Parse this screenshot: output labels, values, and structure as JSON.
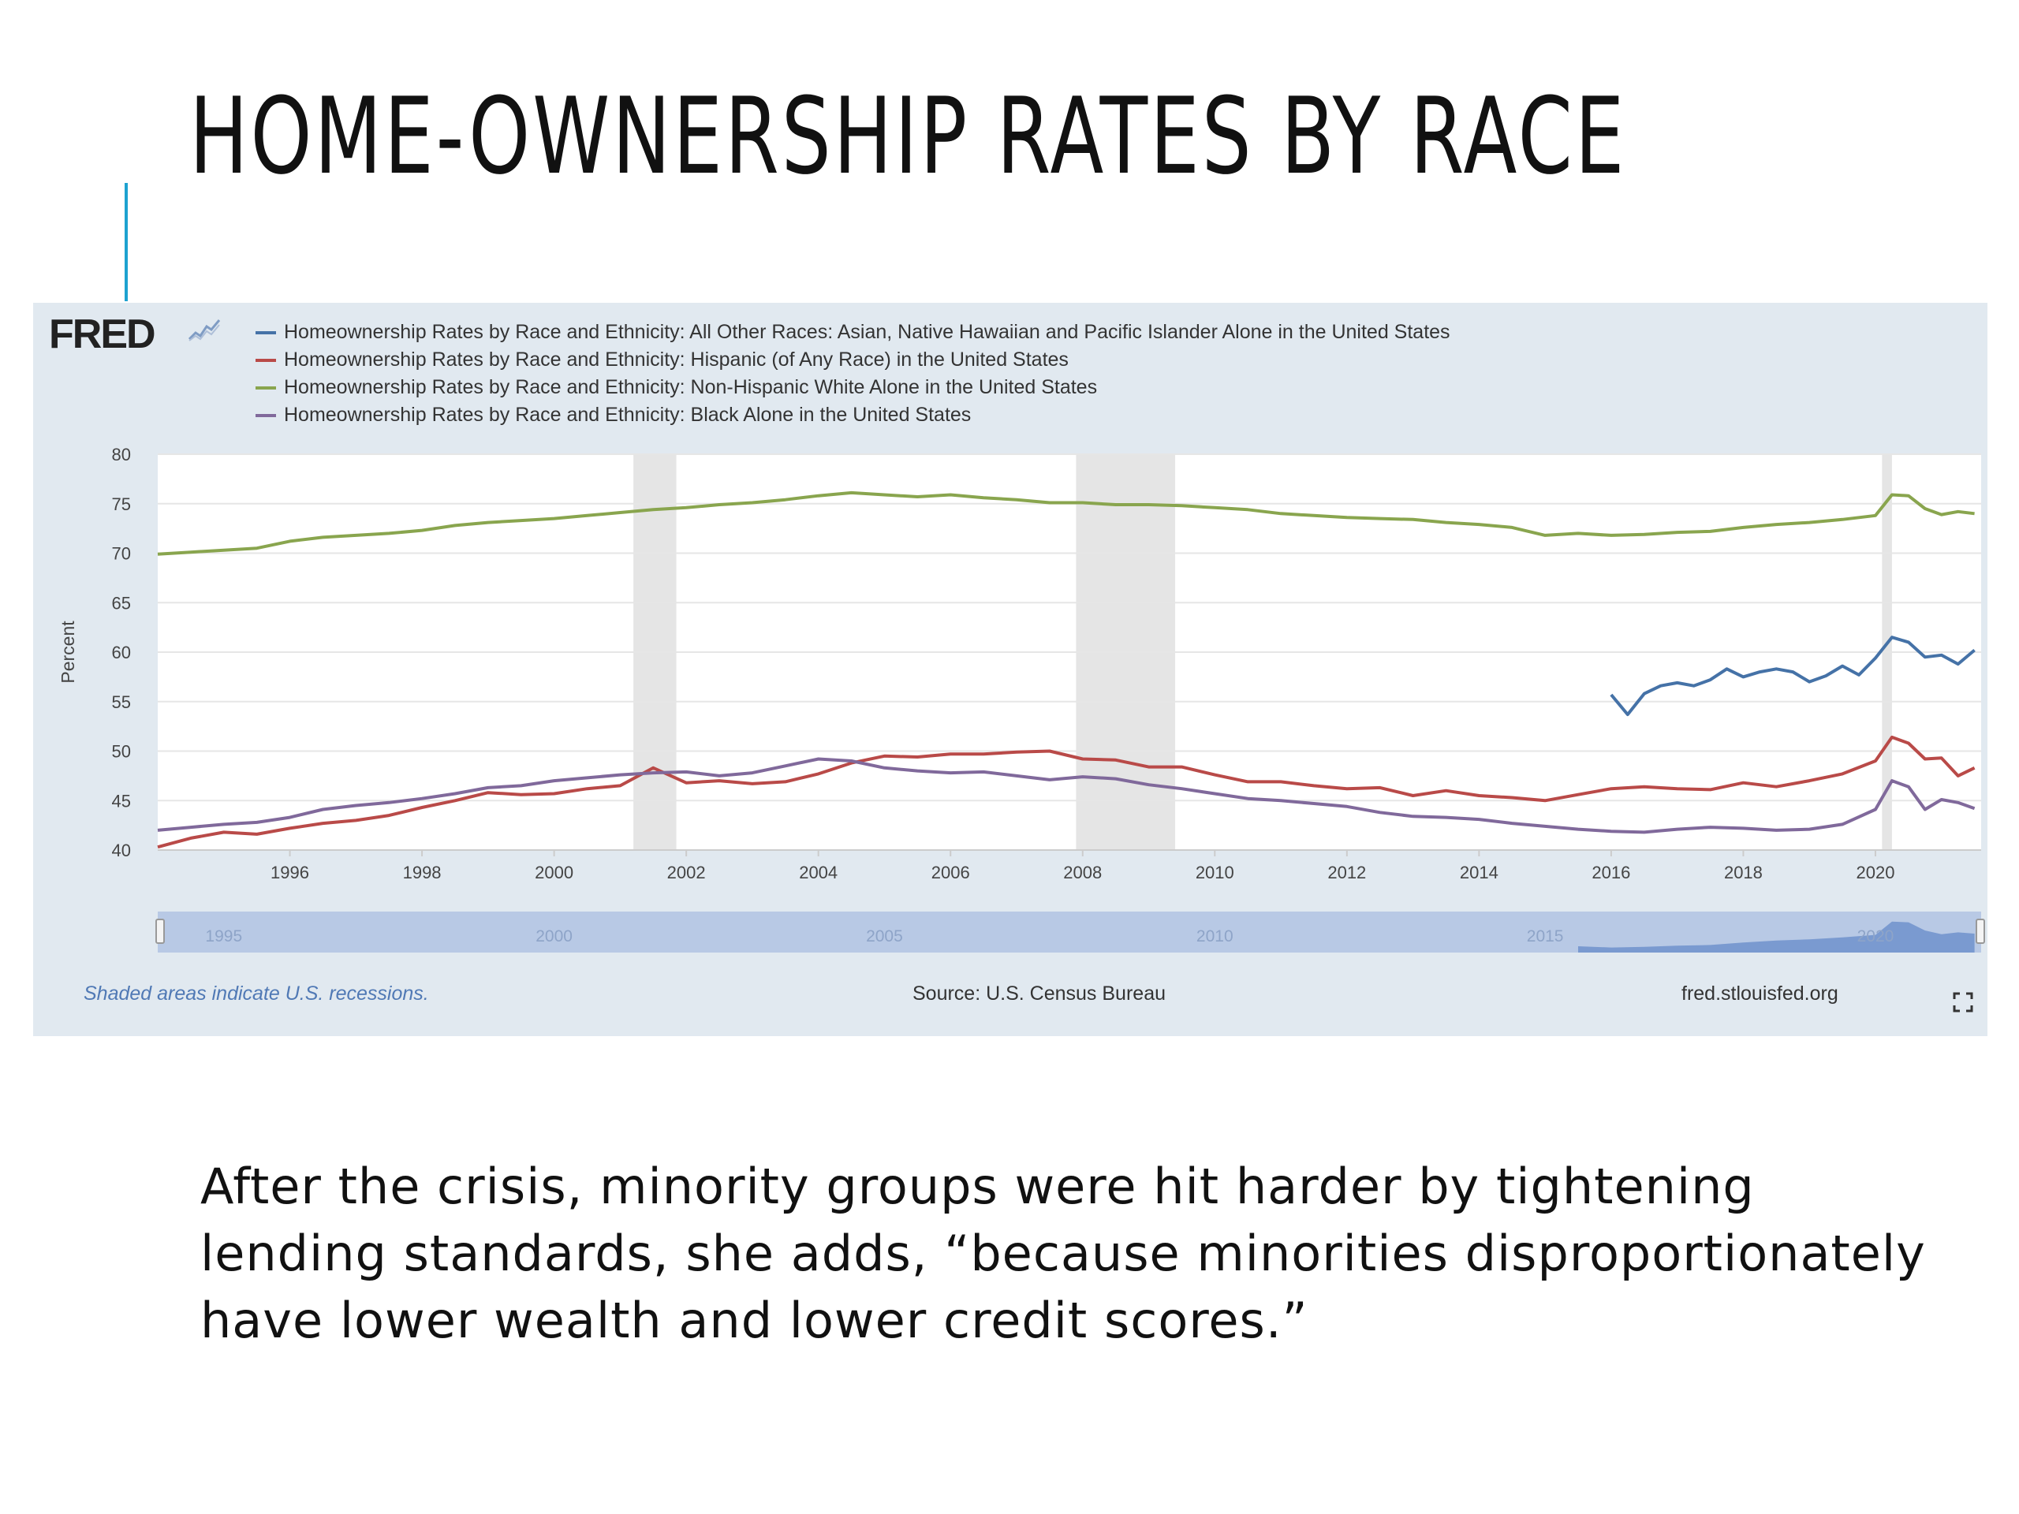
{
  "slide": {
    "title": "HOME-OWNERSHIP RATES BY RACE",
    "caption": "After the crisis, minority groups were hit harder by tightening lending standards, she adds, “because minorities disproportionately have lower wealth and lower credit scores.”"
  },
  "fred": {
    "logo_text": "FRED",
    "logo_icon": "line-graph-icon",
    "footer_note": "Shaded areas indicate U.S. recessions.",
    "source": "Source: U.S. Census Bureau",
    "site": "fred.stlouisfed.org",
    "fullscreen_icon": "fullscreen-icon",
    "colors": {
      "panel_background": "#e1e9f0",
      "plot_background": "#ffffff",
      "recession_shade": "#e5e5e5",
      "navigator_background": "#b8c9e5",
      "navigator_fill": "#7a9ad0"
    },
    "navigator_labels": [
      "1995",
      "2000",
      "2005",
      "2010",
      "2015",
      "2020"
    ]
  },
  "chart_data": {
    "type": "line",
    "title": "",
    "xlabel": "",
    "ylabel": "Percent",
    "xlim": [
      1994,
      2021.6
    ],
    "ylim": [
      40,
      80
    ],
    "x_ticks": [
      "1996",
      "1998",
      "2000",
      "2002",
      "2004",
      "2006",
      "2008",
      "2010",
      "2012",
      "2014",
      "2016",
      "2018",
      "2020"
    ],
    "y_ticks": [
      "40",
      "45",
      "50",
      "55",
      "60",
      "65",
      "70",
      "75",
      "80"
    ],
    "grid": "horizontal",
    "legend_position": "top-left",
    "recessions": [
      [
        2001.2,
        2001.85
      ],
      [
        2007.9,
        2009.4
      ],
      [
        2020.1,
        2020.25
      ]
    ],
    "series": [
      {
        "name": "Homeownership Rates by Race and Ethnicity: All Other Races: Asian, Native Hawaiian and Pacific Islander Alone in the United States",
        "color": "#4572a7",
        "x": [
          2016.0,
          2016.25,
          2016.5,
          2016.75,
          2017.0,
          2017.25,
          2017.5,
          2017.75,
          2018.0,
          2018.25,
          2018.5,
          2018.75,
          2019.0,
          2019.25,
          2019.5,
          2019.75,
          2020.0,
          2020.25,
          2020.5,
          2020.75,
          2021.0,
          2021.25,
          2021.5
        ],
        "y": [
          55.7,
          53.7,
          55.8,
          56.6,
          56.9,
          56.6,
          57.2,
          58.3,
          57.5,
          58.0,
          58.3,
          58.0,
          57.0,
          57.6,
          58.6,
          57.7,
          59.4,
          61.5,
          61.0,
          59.5,
          59.7,
          58.8,
          60.2
        ]
      },
      {
        "name": "Homeownership Rates by Race and Ethnicity: Hispanic (of Any Race) in the United States",
        "color": "#b94a48",
        "x": [
          1994.0,
          1994.5,
          1995.0,
          1995.5,
          1996.0,
          1996.5,
          1997.0,
          1997.5,
          1998.0,
          1998.5,
          1999.0,
          1999.5,
          2000.0,
          2000.5,
          2001.0,
          2001.5,
          2002.0,
          2002.5,
          2003.0,
          2003.5,
          2004.0,
          2004.5,
          2005.0,
          2005.5,
          2006.0,
          2006.5,
          2007.0,
          2007.5,
          2008.0,
          2008.5,
          2009.0,
          2009.5,
          2010.0,
          2010.5,
          2011.0,
          2011.5,
          2012.0,
          2012.5,
          2013.0,
          2013.5,
          2014.0,
          2014.5,
          2015.0,
          2015.5,
          2016.0,
          2016.5,
          2017.0,
          2017.5,
          2018.0,
          2018.5,
          2019.0,
          2019.5,
          2020.0,
          2020.25,
          2020.5,
          2020.75,
          2021.0,
          2021.25,
          2021.5
        ],
        "y": [
          40.3,
          41.2,
          41.8,
          41.6,
          42.2,
          42.7,
          43.0,
          43.5,
          44.3,
          45.0,
          45.8,
          45.6,
          45.7,
          46.2,
          46.5,
          48.3,
          46.8,
          47.0,
          46.7,
          46.9,
          47.7,
          48.8,
          49.5,
          49.4,
          49.7,
          49.7,
          49.9,
          50.0,
          49.2,
          49.1,
          48.4,
          48.4,
          47.6,
          46.9,
          46.9,
          46.5,
          46.2,
          46.3,
          45.5,
          46.0,
          45.5,
          45.3,
          45.0,
          45.6,
          46.2,
          46.4,
          46.2,
          46.1,
          46.8,
          46.4,
          47.0,
          47.7,
          49.0,
          51.4,
          50.8,
          49.2,
          49.3,
          47.5,
          48.3
        ]
      },
      {
        "name": "Homeownership Rates by Race and Ethnicity: Non-Hispanic White Alone in the United States",
        "color": "#89a54e",
        "x": [
          1994.0,
          1994.5,
          1995.0,
          1995.5,
          1996.0,
          1996.5,
          1997.0,
          1997.5,
          1998.0,
          1998.5,
          1999.0,
          1999.5,
          2000.0,
          2000.5,
          2001.0,
          2001.5,
          2002.0,
          2002.5,
          2003.0,
          2003.5,
          2004.0,
          2004.5,
          2005.0,
          2005.5,
          2006.0,
          2006.5,
          2007.0,
          2007.5,
          2008.0,
          2008.5,
          2009.0,
          2009.5,
          2010.0,
          2010.5,
          2011.0,
          2011.5,
          2012.0,
          2012.5,
          2013.0,
          2013.5,
          2014.0,
          2014.5,
          2015.0,
          2015.5,
          2016.0,
          2016.5,
          2017.0,
          2017.5,
          2018.0,
          2018.5,
          2019.0,
          2019.5,
          2020.0,
          2020.25,
          2020.5,
          2020.75,
          2021.0,
          2021.25,
          2021.5
        ],
        "y": [
          69.9,
          70.1,
          70.3,
          70.5,
          71.2,
          71.6,
          71.8,
          72.0,
          72.3,
          72.8,
          73.1,
          73.3,
          73.5,
          73.8,
          74.1,
          74.4,
          74.6,
          74.9,
          75.1,
          75.4,
          75.8,
          76.1,
          75.9,
          75.7,
          75.9,
          75.6,
          75.4,
          75.1,
          75.1,
          74.9,
          74.9,
          74.8,
          74.6,
          74.4,
          74.0,
          73.8,
          73.6,
          73.5,
          73.4,
          73.1,
          72.9,
          72.6,
          71.8,
          72.0,
          71.8,
          71.9,
          72.1,
          72.2,
          72.6,
          72.9,
          73.1,
          73.4,
          73.8,
          75.9,
          75.8,
          74.5,
          73.9,
          74.2,
          74.0
        ]
      },
      {
        "name": "Homeownership Rates by Race and Ethnicity: Black Alone in the United States",
        "color": "#80699b",
        "x": [
          1994.0,
          1994.5,
          1995.0,
          1995.5,
          1996.0,
          1996.5,
          1997.0,
          1997.5,
          1998.0,
          1998.5,
          1999.0,
          1999.5,
          2000.0,
          2000.5,
          2001.0,
          2001.5,
          2002.0,
          2002.5,
          2003.0,
          2003.5,
          2004.0,
          2004.5,
          2005.0,
          2005.5,
          2006.0,
          2006.5,
          2007.0,
          2007.5,
          2008.0,
          2008.5,
          2009.0,
          2009.5,
          2010.0,
          2010.5,
          2011.0,
          2011.5,
          2012.0,
          2012.5,
          2013.0,
          2013.5,
          2014.0,
          2014.5,
          2015.0,
          2015.5,
          2016.0,
          2016.5,
          2017.0,
          2017.5,
          2018.0,
          2018.5,
          2019.0,
          2019.5,
          2020.0,
          2020.25,
          2020.5,
          2020.75,
          2021.0,
          2021.25,
          2021.5
        ],
        "y": [
          42.0,
          42.3,
          42.6,
          42.8,
          43.3,
          44.1,
          44.5,
          44.8,
          45.2,
          45.7,
          46.3,
          46.5,
          47.0,
          47.3,
          47.6,
          47.8,
          47.9,
          47.5,
          47.8,
          48.5,
          49.2,
          49.0,
          48.3,
          48.0,
          47.8,
          47.9,
          47.5,
          47.1,
          47.4,
          47.2,
          46.6,
          46.2,
          45.7,
          45.2,
          45.0,
          44.7,
          44.4,
          43.8,
          43.4,
          43.3,
          43.1,
          42.7,
          42.4,
          42.1,
          41.9,
          41.8,
          42.1,
          42.3,
          42.2,
          42.0,
          42.1,
          42.6,
          44.1,
          47.0,
          46.4,
          44.1,
          45.1,
          44.8,
          44.2
        ]
      }
    ]
  }
}
